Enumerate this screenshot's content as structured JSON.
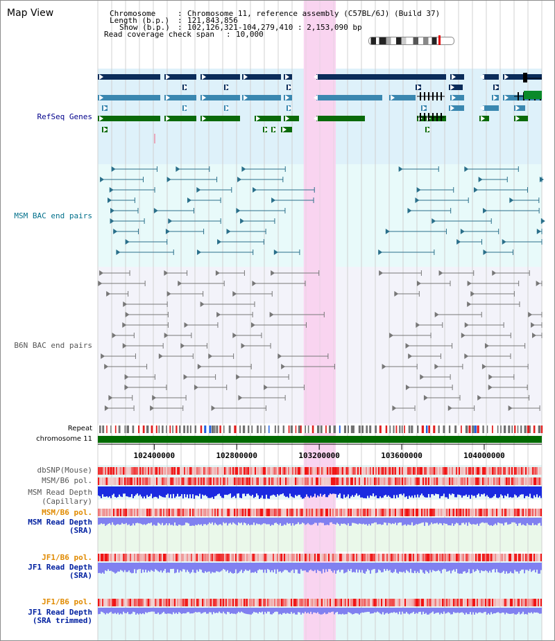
{
  "page_title": "Map View",
  "header": {
    "chromosome_key": "Chromosome",
    "chromosome_val": "Chromosome 11, reference assembly (C57BL/6J) (Build 37)",
    "length_key": "Length (b.p.)",
    "length_val": "121,843,856",
    "show_key": "Show (b.p.)",
    "show_val": "102,126,321-104,279,410 : 2,153,090 bp",
    "coverage_key": "Read coverage check span",
    "coverage_val": "10,000",
    "sep": ":"
  },
  "region": {
    "start": 102126321,
    "end": 104279410
  },
  "highlight": {
    "start": 103125000,
    "end": 103280000
  },
  "axis_ticks": [
    {
      "pos": 102400000,
      "label": "102400000"
    },
    {
      "pos": 102800000,
      "label": "102800000"
    },
    {
      "pos": 103200000,
      "label": "103200000"
    },
    {
      "pos": 103600000,
      "label": "103600000"
    },
    {
      "pos": 104000000,
      "label": "104000000"
    }
  ],
  "labels": {
    "refseq": "RefSeq Genes",
    "msm_bac": "MSM BAC end pairs",
    "b6n_bac": "B6N BAC end pairs",
    "repeat": "Repeat",
    "chromosome": "chromosome 11",
    "dbsnp": "dbSNP(Mouse)",
    "msm_b6_pol": "MSM/B6 pol.",
    "msm_depth_cap_1": "MSM Read Depth",
    "msm_depth_cap_2": "(Capillary)",
    "msm_b6_pol_2": "MSM/B6 pol.",
    "msm_depth_sra_1": "MSM Read Depth",
    "msm_depth_sra_2": "(SRA)",
    "jf1_pol": "JF1/B6 pol.",
    "jf1_depth_1": "JF1 Read Depth",
    "jf1_depth_2": "(SRA)",
    "jf1_pol_2": "JF1/B6 pol.",
    "jf1_trim_1": "JF1 Read Depth",
    "jf1_trim_2": "(SRA trimmed)"
  },
  "colors": {
    "refseq_bg": "#def1fa",
    "msm_bg": "#e8fafa",
    "b6n_bg": "#f3f3fa",
    "highlight": "#f9d4f0",
    "gene_navy": "#0b2c5a",
    "gene_steel": "#3a87b0",
    "gene_green": "#0a6a0a",
    "msm_line": "#2a6f8a",
    "b6n_line": "#777777",
    "chrom": "#006a00",
    "label_navy": "#00008b",
    "label_gray": "#555555",
    "label_orange": "#e08a00",
    "label_teal": "#006f8a",
    "label_blue": "#0020a0",
    "depth_dark": "#1a2ae0",
    "depth_light": "#8080f0"
  }
}
